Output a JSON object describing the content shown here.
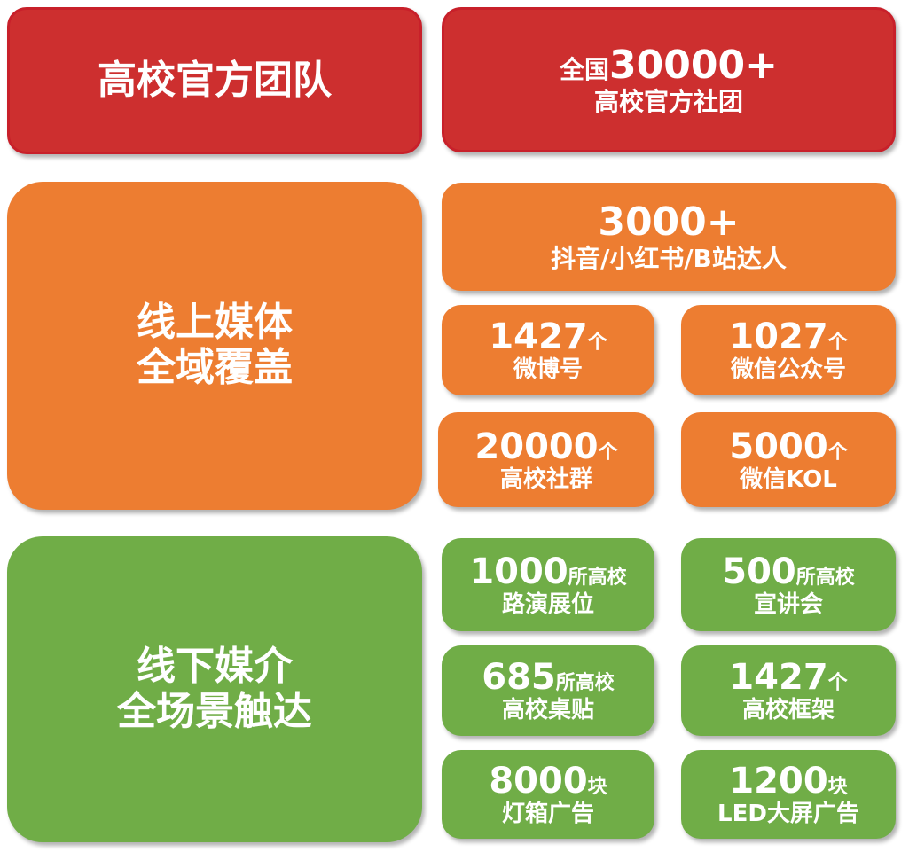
{
  "colors": {
    "red": "#CD2F2F",
    "orange": "#ED7D31",
    "green": "#70AD47"
  },
  "team": {
    "label": "高校官方团队",
    "stat_prefix": "全国",
    "stat_num": "30000+",
    "stat_sub": "高校官方社团"
  },
  "online": {
    "label_line1": "线上媒体",
    "label_line2": "全域覆盖",
    "wide": {
      "num": "3000+",
      "sub": "抖音/小红书/B站达人"
    },
    "tiles": [
      {
        "num": "1427",
        "unit": "个",
        "sub": "微博号"
      },
      {
        "num": "1027",
        "unit": "个",
        "sub": "微信公众号"
      },
      {
        "num": "20000",
        "unit": "个",
        "sub": "高校社群"
      },
      {
        "num": "5000",
        "unit": "个",
        "sub": "微信KOL"
      }
    ]
  },
  "offline": {
    "label_line1": "线下媒介",
    "label_line2": "全场景触达",
    "tiles": [
      {
        "num": "1000",
        "unit": "所高校",
        "sub": "路演展位"
      },
      {
        "num": "500",
        "unit": "所高校",
        "sub": "宣讲会"
      },
      {
        "num": "685",
        "unit": "所高校",
        "sub": "高校桌贴"
      },
      {
        "num": "1427",
        "unit": "个",
        "sub": "高校框架"
      },
      {
        "num": "8000",
        "unit": "块",
        "sub": "灯箱广告"
      },
      {
        "num": "1200",
        "unit": "块",
        "sub": "LED大屏广告"
      }
    ]
  }
}
